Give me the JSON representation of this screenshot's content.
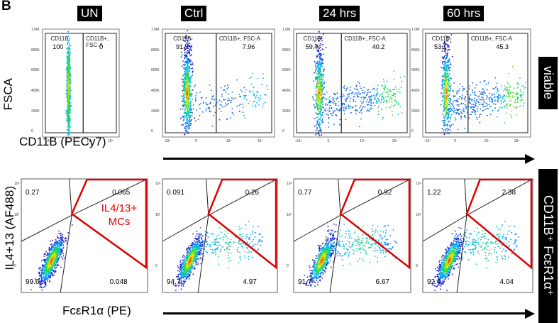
{
  "panel_letter": "B",
  "columns": [
    "UN",
    "Ctrl",
    "24 hrs",
    "60 hrs"
  ],
  "top_row": {
    "side_label": "viable",
    "y_axis_label": "FSCA",
    "x_axis_label": "CD11B (PECy7)",
    "gate_left_name": "CD11B-",
    "gate_right_name": "CD11B+, FSC-A",
    "y_ticks": [
      "1.0M",
      "800K",
      "600K",
      "400K",
      "200K",
      "0"
    ],
    "x_ticks": [
      "-10⁴",
      "0",
      "10⁴",
      "10⁵"
    ],
    "left_values": [
      "100",
      "91.9",
      "59.4",
      "53.1"
    ],
    "right_values": [
      "0",
      "7.96",
      "40.2",
      "45.3"
    ]
  },
  "bottom_row": {
    "side_label": "CD11B⁺ FcεR1α⁺",
    "y_axis_label": "IL4+13 (AF488)",
    "x_axis_label": "FcεR1α (PE)",
    "gate_label_line1": "IL4/13+",
    "gate_label_line2": "MCs",
    "y_ticks": [
      "10⁴",
      "10³",
      "0"
    ],
    "quadrants": [
      {
        "tl": "0.27",
        "tr": "0.065",
        "bl": "99.6",
        "br": "0.048"
      },
      {
        "tl": "0.091",
        "tr": "0.26",
        "bl": "94.7",
        "br": "4.97"
      },
      {
        "tl": "0.77",
        "tr": "0.92",
        "bl": "91.7",
        "br": "6.67"
      },
      {
        "tl": "1.22",
        "tr": "2.38",
        "bl": "92.4",
        "br": "4.04"
      }
    ]
  }
}
